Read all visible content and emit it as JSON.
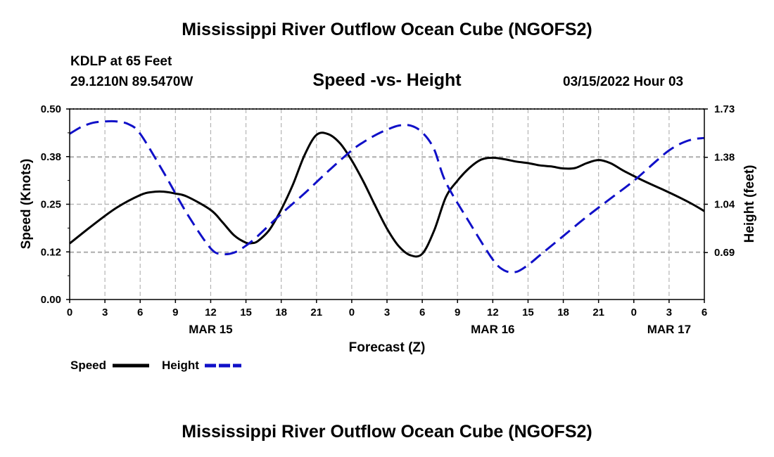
{
  "header": {
    "title": "Mississippi River Outflow Ocean Cube (NGOFS2)",
    "station": "KDLP at 65 Feet",
    "coords": "29.1210N  89.5470W",
    "chart_title": "Speed -vs- Height",
    "timestamp": "03/15/2022 Hour 03"
  },
  "footer": {
    "title": "Mississippi River Outflow Ocean Cube (NGOFS2)"
  },
  "colors": {
    "speed": "#000000",
    "height": "#1010c8",
    "grid": "#b4b4b4"
  },
  "chart_data": {
    "type": "line",
    "title": "Speed -vs- Height",
    "xlabel": "Forecast (Z)",
    "ylabel": "Speed (Knots)",
    "y2label": "Height (feet)",
    "xlim": [
      0,
      54
    ],
    "ylim": [
      0,
      0.5
    ],
    "y2lim": [
      0.35,
      1.73
    ],
    "x_tick_labels": [
      "0",
      "3",
      "6",
      "9",
      "12",
      "15",
      "18",
      "21",
      "0",
      "3",
      "6",
      "9",
      "12",
      "15",
      "18",
      "21",
      "0",
      "3",
      "6"
    ],
    "date_labels": [
      {
        "x": 12,
        "label": "MAR 15"
      },
      {
        "x": 36,
        "label": "MAR 16"
      },
      {
        "x": 51,
        "label": "MAR 17"
      }
    ],
    "y_ticks": [
      {
        "value": 0.0,
        "label": "0.00"
      },
      {
        "value": 0.125,
        "label": "0.12"
      },
      {
        "value": 0.25,
        "label": "0.25"
      },
      {
        "value": 0.375,
        "label": "0.38"
      },
      {
        "value": 0.5,
        "label": "0.50"
      }
    ],
    "y2_ticks": [
      {
        "value": 0.69,
        "label": "0.69"
      },
      {
        "value": 1.04,
        "label": "1.04"
      },
      {
        "value": 1.38,
        "label": "1.38"
      },
      {
        "value": 1.73,
        "label": "1.73"
      }
    ],
    "legend": [
      {
        "name": "Speed",
        "key": "speed"
      },
      {
        "name": "Height",
        "key": "height"
      }
    ],
    "series": [
      {
        "name": "Speed",
        "axis": "left",
        "style": "solid",
        "x": [
          0,
          2,
          4,
          6,
          7,
          8,
          9,
          10,
          12,
          13,
          14,
          15,
          15.5,
          16,
          17,
          18,
          19,
          20,
          21,
          22,
          23,
          24,
          25,
          26,
          27,
          28,
          29,
          30,
          31,
          32,
          33,
          34,
          35,
          36,
          37,
          38,
          39,
          40,
          41,
          42,
          43,
          44,
          45,
          46,
          47,
          48,
          49,
          50,
          51,
          52,
          53,
          54
        ],
        "values": [
          0.147,
          0.196,
          0.241,
          0.274,
          0.282,
          0.283,
          0.278,
          0.27,
          0.235,
          0.203,
          0.168,
          0.149,
          0.148,
          0.153,
          0.183,
          0.236,
          0.302,
          0.38,
          0.432,
          0.434,
          0.41,
          0.365,
          0.309,
          0.246,
          0.186,
          0.14,
          0.116,
          0.12,
          0.18,
          0.268,
          0.312,
          0.345,
          0.367,
          0.372,
          0.368,
          0.362,
          0.358,
          0.352,
          0.349,
          0.344,
          0.345,
          0.358,
          0.366,
          0.358,
          0.34,
          0.324,
          0.309,
          0.295,
          0.281,
          0.266,
          0.25,
          0.232
        ]
      },
      {
        "name": "Height",
        "axis": "right",
        "style": "dashed",
        "x": [
          0,
          1,
          2,
          3,
          4,
          5,
          6,
          8,
          10,
          12,
          13,
          14,
          15,
          16,
          18,
          20,
          22,
          24,
          25,
          26,
          27,
          28,
          29,
          30,
          31,
          32,
          34,
          36,
          37,
          38,
          39,
          40,
          41,
          42,
          44,
          46,
          48,
          50,
          51,
          52,
          53,
          54
        ],
        "values": [
          1.55,
          1.6,
          1.63,
          1.64,
          1.64,
          1.62,
          1.55,
          1.27,
          0.97,
          0.72,
          0.68,
          0.69,
          0.74,
          0.81,
          0.97,
          1.12,
          1.28,
          1.43,
          1.49,
          1.54,
          1.58,
          1.61,
          1.61,
          1.56,
          1.44,
          1.2,
          0.91,
          0.64,
          0.56,
          0.55,
          0.6,
          0.67,
          0.74,
          0.81,
          0.95,
          1.08,
          1.21,
          1.36,
          1.43,
          1.48,
          1.51,
          1.52
        ]
      }
    ]
  }
}
